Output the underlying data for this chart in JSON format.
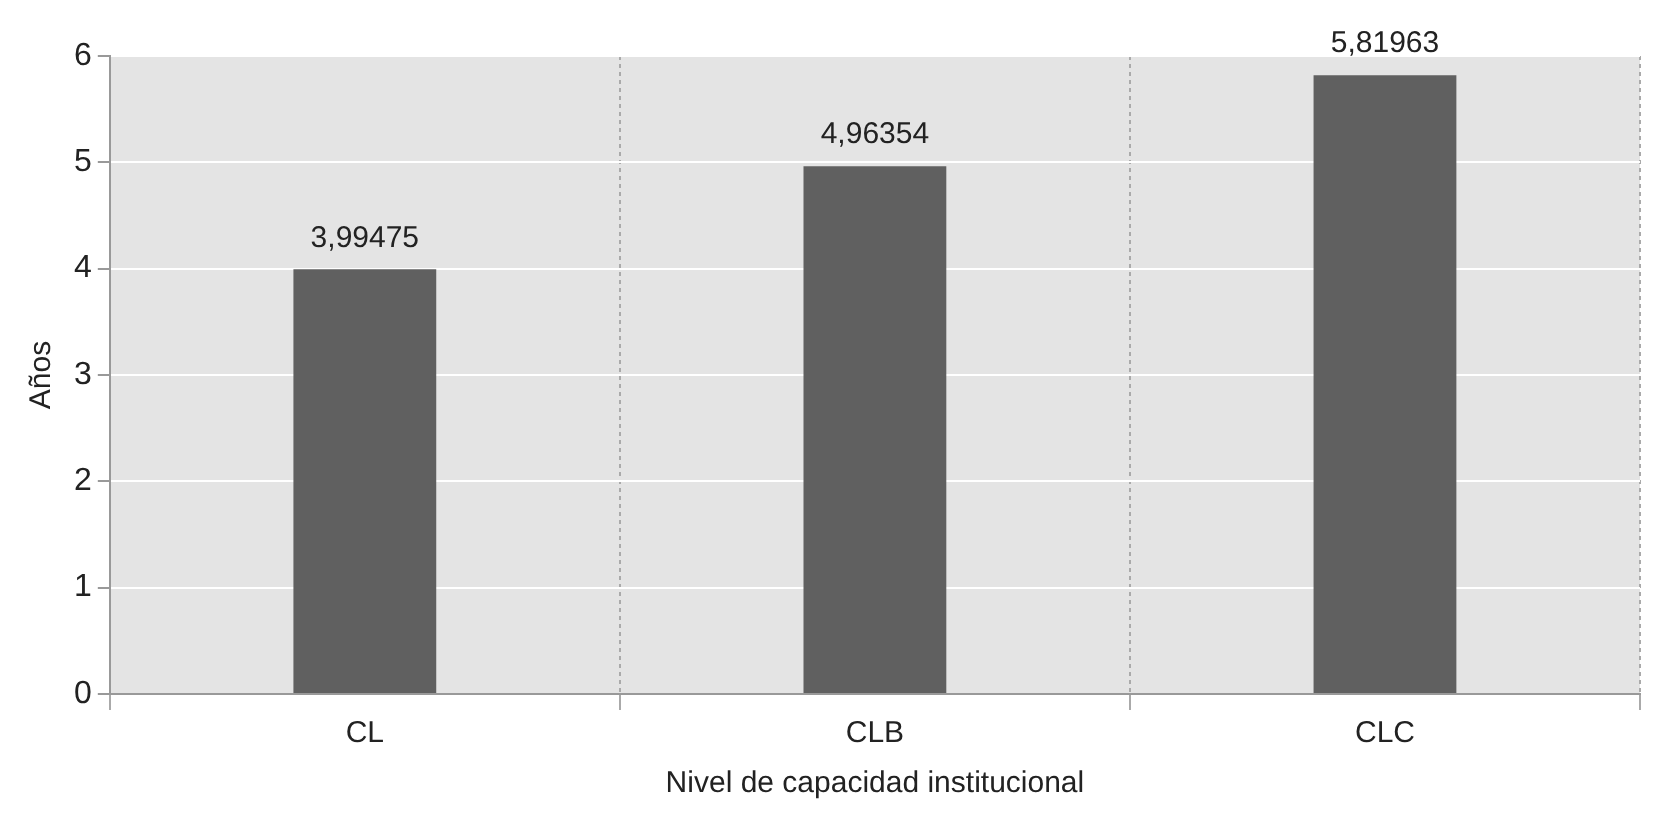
{
  "chart_data": {
    "type": "bar",
    "xlabel": "Nivel de capacidad institucional",
    "ylabel": "Años",
    "categories": [
      "CL",
      "CLB",
      "CLC"
    ],
    "values": [
      3.99475,
      4.96354,
      5.81963
    ],
    "value_labels": [
      "3,99475",
      "4,96354",
      "5,81963"
    ],
    "color": "#606060",
    "ylim": [
      0,
      6
    ],
    "yticks": [
      0,
      1,
      2,
      3,
      4,
      5,
      6
    ],
    "grid": true,
    "legend": false
  }
}
